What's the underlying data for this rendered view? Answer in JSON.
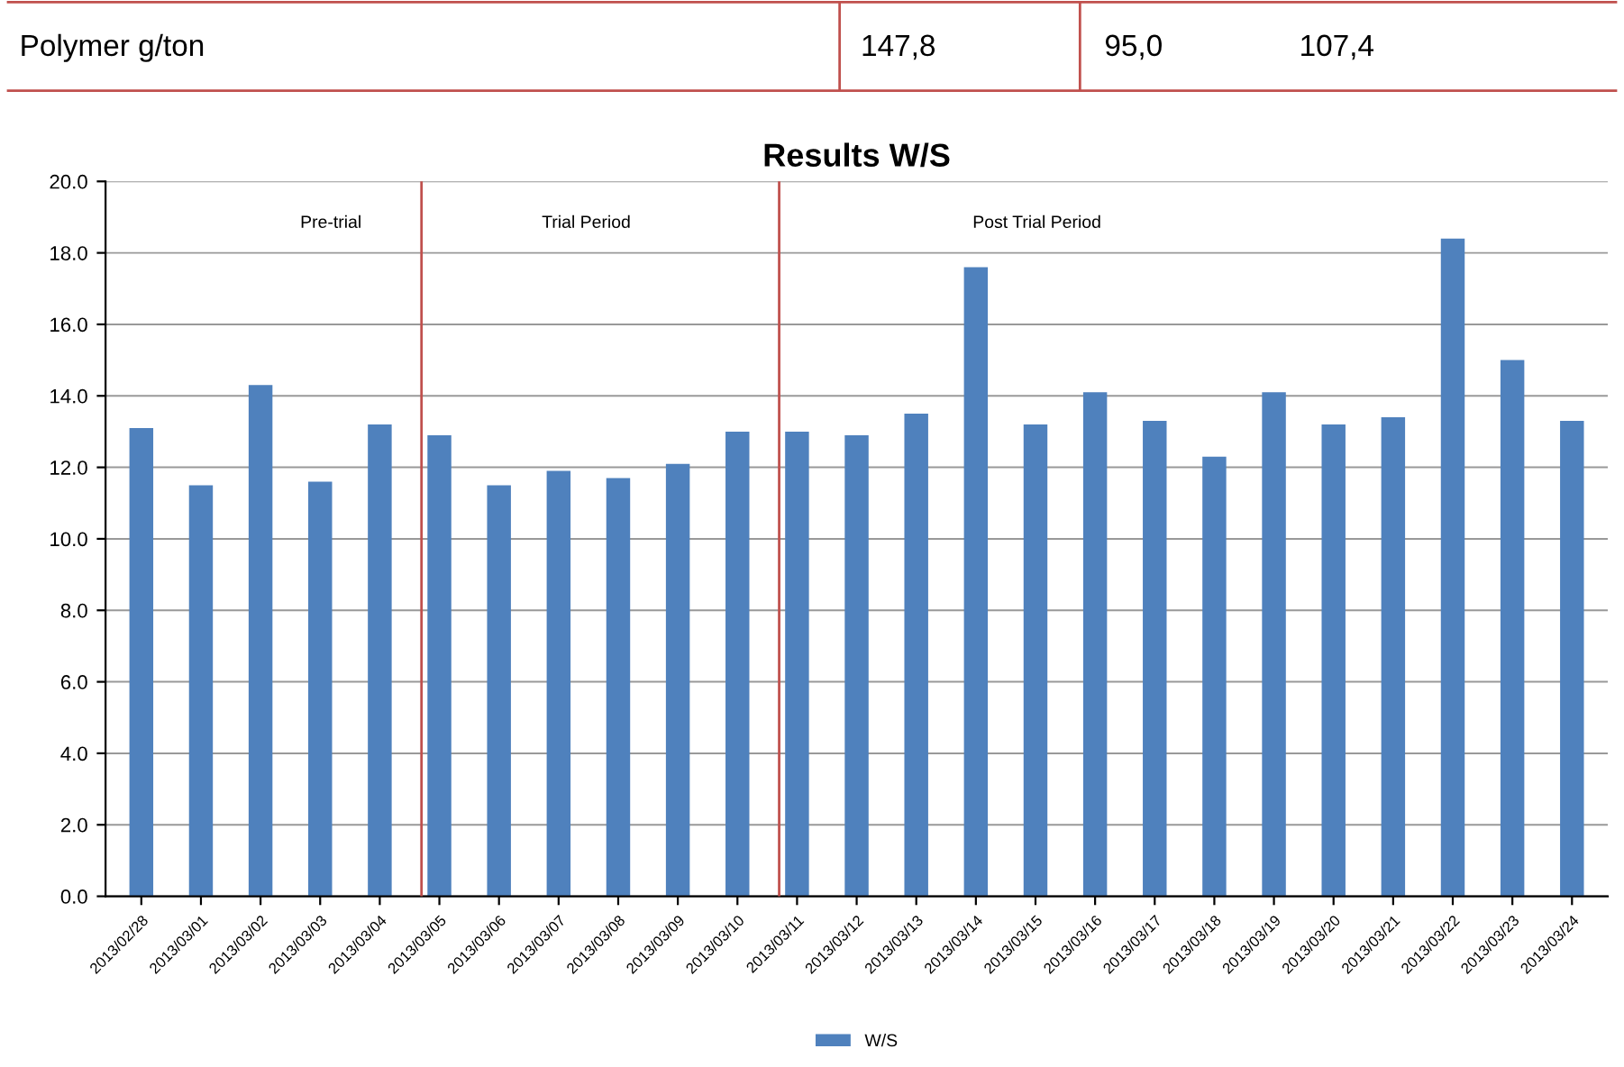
{
  "chart_data": {
    "type": "bar",
    "title": "Results W/S",
    "categories": [
      "2013/02/28",
      "2013/03/01",
      "2013/03/02",
      "2013/03/03",
      "2013/03/04",
      "2013/03/05",
      "2013/03/06",
      "2013/03/07",
      "2013/03/08",
      "2013/03/09",
      "2013/03/10",
      "2013/03/11",
      "2013/03/12",
      "2013/03/13",
      "2013/03/14",
      "2013/03/15",
      "2013/03/16",
      "2013/03/17",
      "2013/03/18",
      "2013/03/19",
      "2013/03/20",
      "2013/03/21",
      "2013/03/22",
      "2013/03/23",
      "2013/03/24"
    ],
    "series": [
      {
        "name": "W/S",
        "color": "#4f81bd",
        "values": [
          13.1,
          11.5,
          14.3,
          11.6,
          13.2,
          12.9,
          11.5,
          11.9,
          11.7,
          12.1,
          13.0,
          13.0,
          12.9,
          13.5,
          17.6,
          13.2,
          14.1,
          13.3,
          12.3,
          14.1,
          13.2,
          13.4,
          18.4,
          15.0,
          13.3
        ]
      }
    ],
    "ylim": [
      0,
      20
    ],
    "yticks": [
      {
        "value": 0,
        "label": "0.0"
      },
      {
        "value": 2,
        "label": "2.0"
      },
      {
        "value": 4,
        "label": "4.0"
      },
      {
        "value": 6,
        "label": "6.0"
      },
      {
        "value": 8,
        "label": "8.0"
      },
      {
        "value": 10,
        "label": "10.0"
      },
      {
        "value": 12,
        "label": "12.0"
      },
      {
        "value": 14,
        "label": "14.0"
      },
      {
        "value": 16,
        "label": "16.0"
      },
      {
        "value": 18,
        "label": "18.0"
      },
      {
        "value": 20,
        "label": "20.0"
      }
    ],
    "grid": "y",
    "legend": "bottom",
    "ref_lines": [
      {
        "axis": "x",
        "value": "2013/03/05",
        "color": "#c0504d"
      },
      {
        "axis": "x",
        "value": "2013/03/11",
        "color": "#c0504d"
      }
    ],
    "annotations": [
      "Pre-trial",
      "Trial Period",
      "Post Trial Period",
      "Polymer g/ton",
      "147,8",
      "95,0",
      "107,4"
    ]
  }
}
